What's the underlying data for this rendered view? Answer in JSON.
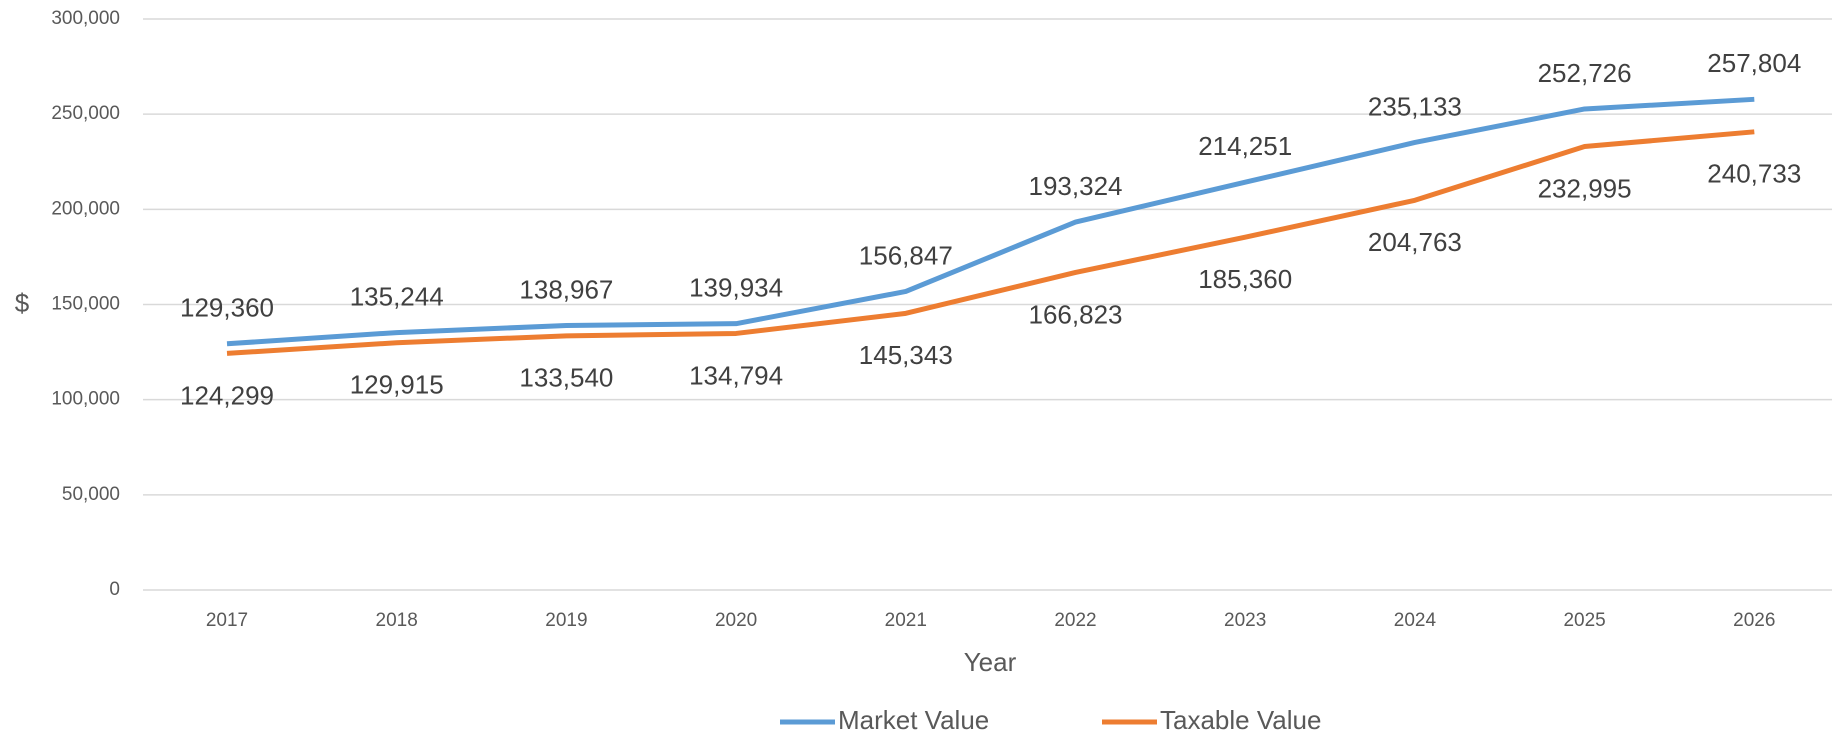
{
  "chart_data": {
    "type": "line",
    "x_label": "Year",
    "y_label": "$",
    "categories": [
      "2017",
      "2018",
      "2019",
      "2020",
      "2021",
      "2022",
      "2023",
      "2024",
      "2025",
      "2026"
    ],
    "series": [
      {
        "name": "Market Value",
        "color": "#5b9bd5",
        "values": [
          129360,
          135244,
          138967,
          139934,
          156847,
          193324,
          214251,
          235133,
          252726,
          257804
        ],
        "value_labels": [
          "129,360",
          "135,244",
          "138,967",
          "139,934",
          "156,847",
          "193,324",
          "214,251",
          "235,133",
          "252,726",
          "257,804"
        ]
      },
      {
        "name": "Taxable Value",
        "color": "#ed7d31",
        "values": [
          124299,
          129915,
          133540,
          134794,
          145343,
          166823,
          185360,
          204763,
          232995,
          240733
        ],
        "value_labels": [
          "124,299",
          "129,915",
          "133,540",
          "134,794",
          "145,343",
          "166,823",
          "185,360",
          "204,763",
          "232,995",
          "240,733"
        ]
      }
    ],
    "ylim": [
      0,
      300000
    ],
    "yticks": [
      {
        "value": 0,
        "label": "0"
      },
      {
        "value": 50000,
        "label": "50,000"
      },
      {
        "value": 100000,
        "label": "100,000"
      },
      {
        "value": 150000,
        "label": "150,000"
      },
      {
        "value": 200000,
        "label": "200,000"
      },
      {
        "value": 250000,
        "label": "250,000"
      },
      {
        "value": 300000,
        "label": "300,000"
      }
    ],
    "grid": true,
    "legend": "bottom"
  }
}
